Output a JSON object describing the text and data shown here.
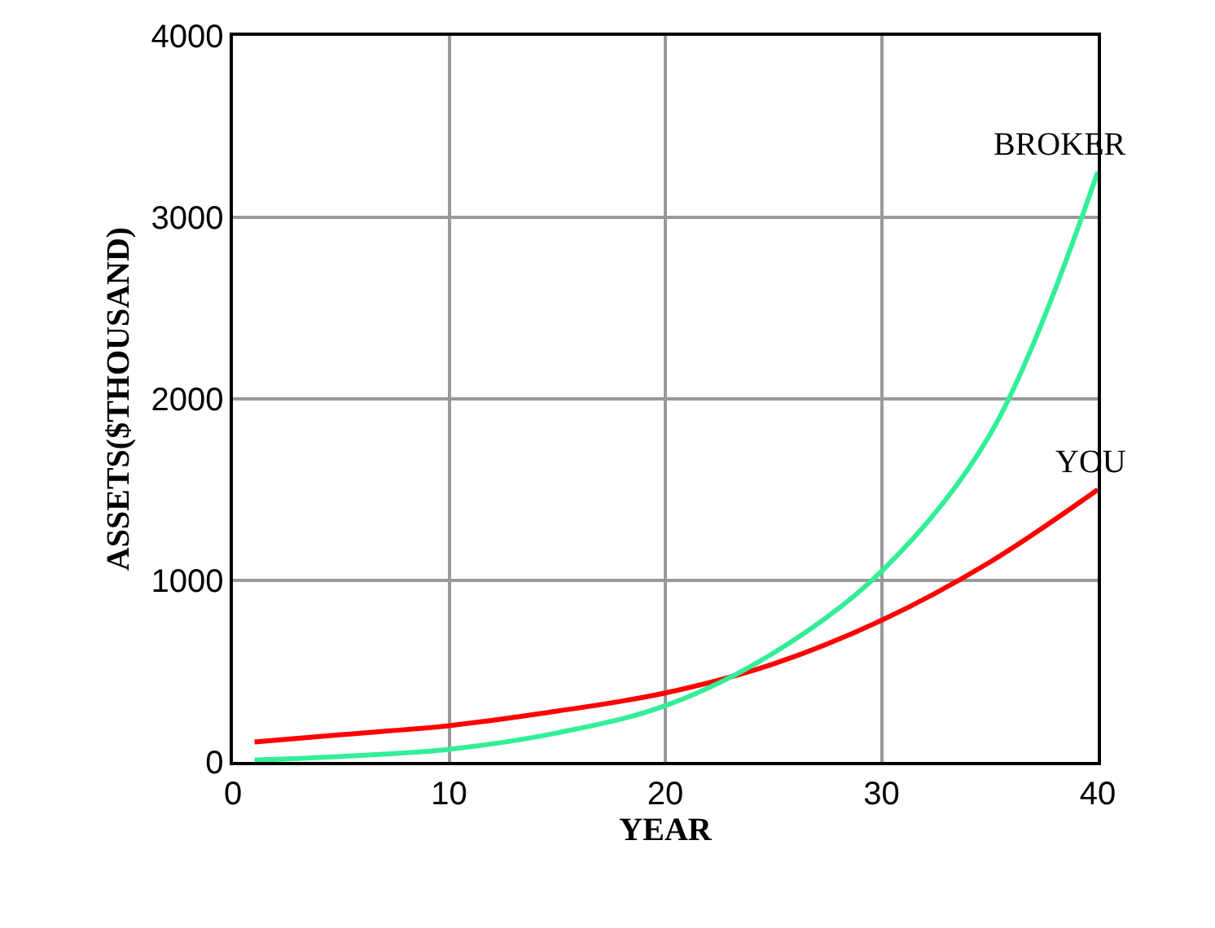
{
  "chart_data": {
    "type": "line",
    "xlabel": "YEAR",
    "ylabel": "ASSETS($THOUSAND)",
    "xlim": [
      0,
      40
    ],
    "ylim": [
      0,
      4000
    ],
    "xticks": [
      0,
      10,
      20,
      30,
      40
    ],
    "yticks": [
      0,
      1000,
      2000,
      3000,
      4000
    ],
    "grid": true,
    "legend": false,
    "marker": "none",
    "line_style": "solid",
    "series": [
      {
        "name": "YOU",
        "color": "#ff0000",
        "x": [
          1,
          5,
          10,
          15,
          20,
          25,
          30,
          35,
          40
        ],
        "values": [
          110,
          150,
          200,
          280,
          380,
          540,
          780,
          1100,
          1500
        ]
      },
      {
        "name": "BROKER",
        "color": "#33ee99",
        "x": [
          1,
          5,
          10,
          15,
          20,
          25,
          30,
          35,
          40
        ],
        "values": [
          10,
          30,
          70,
          160,
          310,
          600,
          1050,
          1800,
          3250
        ]
      }
    ]
  }
}
